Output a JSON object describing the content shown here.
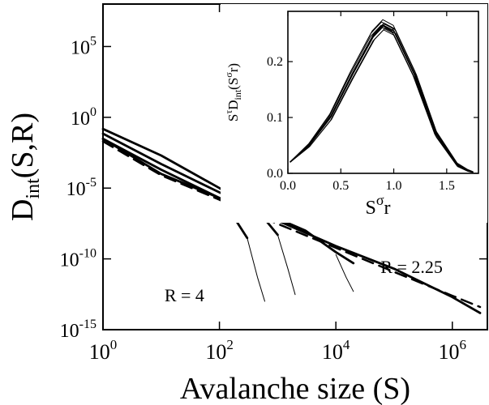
{
  "chart_data": [
    {
      "type": "line",
      "xlabel": "Avalanche size (S)",
      "ylabel_main": "D",
      "ylabel_sub": "int",
      "ylabel_tail": "(S,R)",
      "xscale": "log",
      "yscale": "log",
      "xlim": [
        1,
        4000000
      ],
      "ylim": [
        1e-15,
        100000000.0
      ],
      "xticks": [
        {
          "value": 1,
          "base": "10",
          "exp": "0"
        },
        {
          "value": 100,
          "base": "10",
          "exp": "2"
        },
        {
          "value": 10000,
          "base": "10",
          "exp": "4"
        },
        {
          "value": 1000000,
          "base": "10",
          "exp": "6"
        }
      ],
      "yticks": [
        {
          "value": 100000.0,
          "base": "10",
          "exp": "5"
        },
        {
          "value": 1,
          "base": "10",
          "exp": "0"
        },
        {
          "value": 1e-05,
          "base": "10",
          "exp": "-5"
        },
        {
          "value": 1e-10,
          "base": "10",
          "exp": "-10"
        },
        {
          "value": 1e-15,
          "base": "10",
          "exp": "-15"
        }
      ],
      "annotations": [
        {
          "text": "R = 2.25",
          "x": 200000,
          "y": 1e-11
        },
        {
          "text": "R = 4",
          "x": 25,
          "y": 1e-13
        }
      ],
      "series": [
        {
          "style": "thick",
          "x": [
            1,
            10,
            100,
            1000,
            10000,
            100000,
            1000000,
            3000000
          ],
          "y": [
            0.03,
            0.0001,
            2e-06,
            5e-08,
            8e-10,
            2e-11,
            2e-13,
            1.5e-14
          ]
        },
        {
          "style": "thick",
          "x": [
            1,
            10,
            100,
            1000,
            3000,
            10000,
            20000
          ],
          "y": [
            0.07,
            0.0005,
            5e-06,
            7e-08,
            1e-08,
            3e-10,
            5e-11
          ]
        },
        {
          "style": "thin",
          "x": [
            10000,
            15000,
            20000
          ],
          "y": [
            2e-10,
            5e-12,
            5e-13
          ]
        },
        {
          "style": "thick",
          "x": [
            1,
            10,
            100,
            400,
            1000
          ],
          "y": [
            0.15,
            0.002,
            1e-05,
            5e-07,
            5e-09
          ]
        },
        {
          "style": "thin",
          "x": [
            1000,
            1500,
            2000
          ],
          "y": [
            5e-09,
            2e-11,
            3e-13
          ]
        },
        {
          "style": "thick",
          "x": [
            1,
            10,
            100,
            200,
            300
          ],
          "y": [
            0.03,
            0.0002,
            2e-06,
            4e-08,
            3e-09
          ]
        },
        {
          "style": "thin",
          "x": [
            300,
            450,
            600
          ],
          "y": [
            3e-09,
            5e-12,
            1e-13
          ]
        },
        {
          "style": "dashed",
          "x": [
            1,
            10,
            100,
            1000,
            10000,
            100000,
            1000000,
            3000000
          ],
          "y": [
            0.02,
            8e-05,
            1.5e-06,
            3e-08,
            6e-10,
            1.2e-11,
            2.5e-13,
            4e-14
          ]
        }
      ]
    },
    {
      "type": "line",
      "xlabel_main": "S",
      "xlabel_sup": "σ",
      "xlabel_tail": "r",
      "ylabel_main": "S",
      "ylabel_sup": "τ",
      "ylabel_mid": "D",
      "ylabel_sub": "int",
      "ylabel_tail": "(S",
      "ylabel_sup2": "σ",
      "ylabel_end": "r)",
      "xlim": [
        0,
        1.8
      ],
      "ylim": [
        0,
        0.29
      ],
      "xticks": [
        "0.0",
        "0.5",
        "1.0",
        "1.5"
      ],
      "yticks": [
        "0.0",
        "0.1",
        "0.2"
      ],
      "series": [
        {
          "x": [
            0.02,
            0.2,
            0.4,
            0.6,
            0.8,
            0.9,
            1.0,
            1.2,
            1.4,
            1.6,
            1.7,
            1.75
          ],
          "y": [
            0.02,
            0.05,
            0.1,
            0.175,
            0.245,
            0.265,
            0.255,
            0.175,
            0.07,
            0.015,
            0.005,
            0.002
          ]
        }
      ]
    }
  ]
}
